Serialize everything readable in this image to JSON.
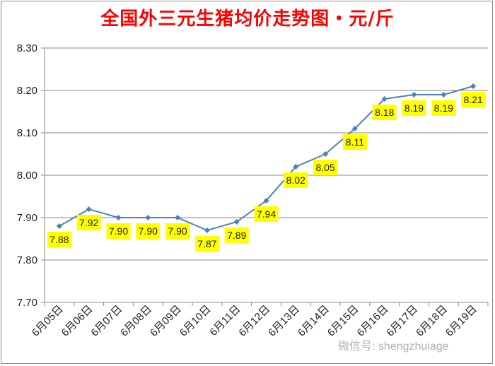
{
  "title": "全国外三元生猪均价走势图・元/斤",
  "watermark": "微信号: shengzhuiage",
  "chart_data": {
    "type": "line",
    "title": "全国外三元生猪均价走势图・元/斤",
    "categories": [
      "6月05日",
      "6月06日",
      "6月07日",
      "6月08日",
      "6月09日",
      "6月10日",
      "6月11日",
      "6月12日",
      "6月13日",
      "6月14日",
      "6月15日",
      "6月16日",
      "6月17日",
      "6月18日",
      "6月19日"
    ],
    "values": [
      7.88,
      7.92,
      7.9,
      7.9,
      7.9,
      7.87,
      7.89,
      7.94,
      8.02,
      8.05,
      8.11,
      8.18,
      8.19,
      8.19,
      8.21
    ],
    "ylim": [
      7.7,
      8.3
    ],
    "yticks": [
      "7.70",
      "7.80",
      "7.90",
      "8.00",
      "8.10",
      "8.20",
      "8.30"
    ],
    "grid": true,
    "colors": {
      "line": "#4f81bd",
      "label_bg": "#ffff00",
      "title": "#ff0000"
    }
  }
}
